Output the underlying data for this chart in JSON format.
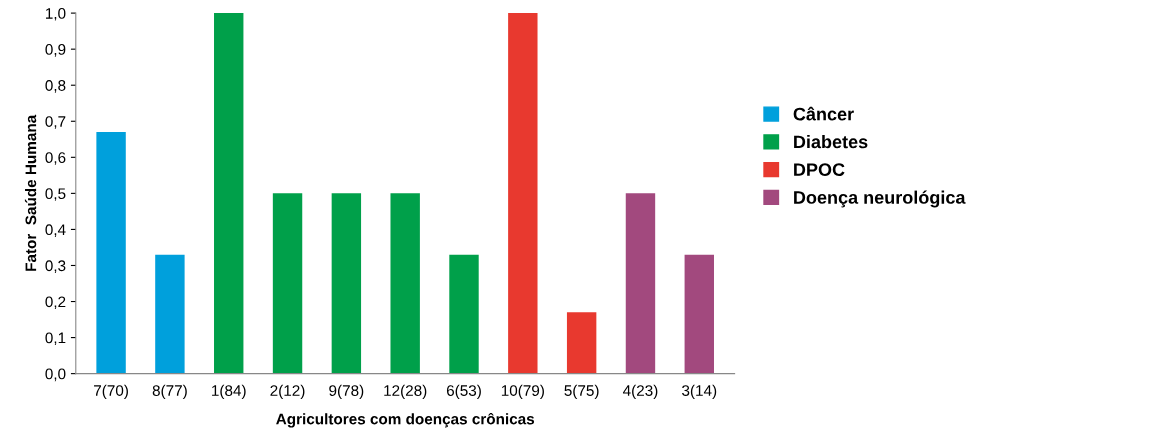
{
  "chart_data": {
    "type": "bar",
    "xlabel": "Agricultores com doenças crônicas",
    "ylabel": "Fator  Saúde Humana",
    "categories": [
      "7(70)",
      "8(77)",
      "1(84)",
      "2(12)",
      "9(78)",
      "12(28)",
      "6(53)",
      "10(79)",
      "5(75)",
      "4(23)",
      "3(14)"
    ],
    "series": [
      {
        "name": "Câncer",
        "color": "#00a0dc",
        "values": [
          0.67,
          0.33,
          null,
          null,
          null,
          null,
          null,
          null,
          null,
          null,
          null
        ]
      },
      {
        "name": "Diabetes",
        "color": "#00a04a",
        "values": [
          null,
          null,
          1.0,
          0.5,
          0.5,
          0.5,
          0.33,
          null,
          null,
          null,
          null
        ]
      },
      {
        "name": "DPOC",
        "color": "#e8392f",
        "values": [
          null,
          null,
          null,
          null,
          null,
          null,
          null,
          1.0,
          0.17,
          null,
          null
        ]
      },
      {
        "name": "Doença neurológica",
        "color": "#a2497e",
        "values": [
          null,
          null,
          null,
          null,
          null,
          null,
          null,
          null,
          null,
          0.5,
          0.33
        ]
      }
    ],
    "ylim": [
      0,
      1.0
    ],
    "yticks": [
      {
        "value": 0,
        "label": "0,0"
      },
      {
        "value": 0.1,
        "label": "0,1"
      },
      {
        "value": 0.2,
        "label": "0,2"
      },
      {
        "value": 0.3,
        "label": "0,3"
      },
      {
        "value": 0.4,
        "label": "0,4"
      },
      {
        "value": 0.5,
        "label": "0,5"
      },
      {
        "value": 0.6,
        "label": "0,6"
      },
      {
        "value": 0.7,
        "label": "0,7"
      },
      {
        "value": 0.8,
        "label": "0,8"
      },
      {
        "value": 0.9,
        "label": "0,9"
      },
      {
        "value": 1.0,
        "label": "1,0"
      }
    ],
    "legend": "right"
  }
}
